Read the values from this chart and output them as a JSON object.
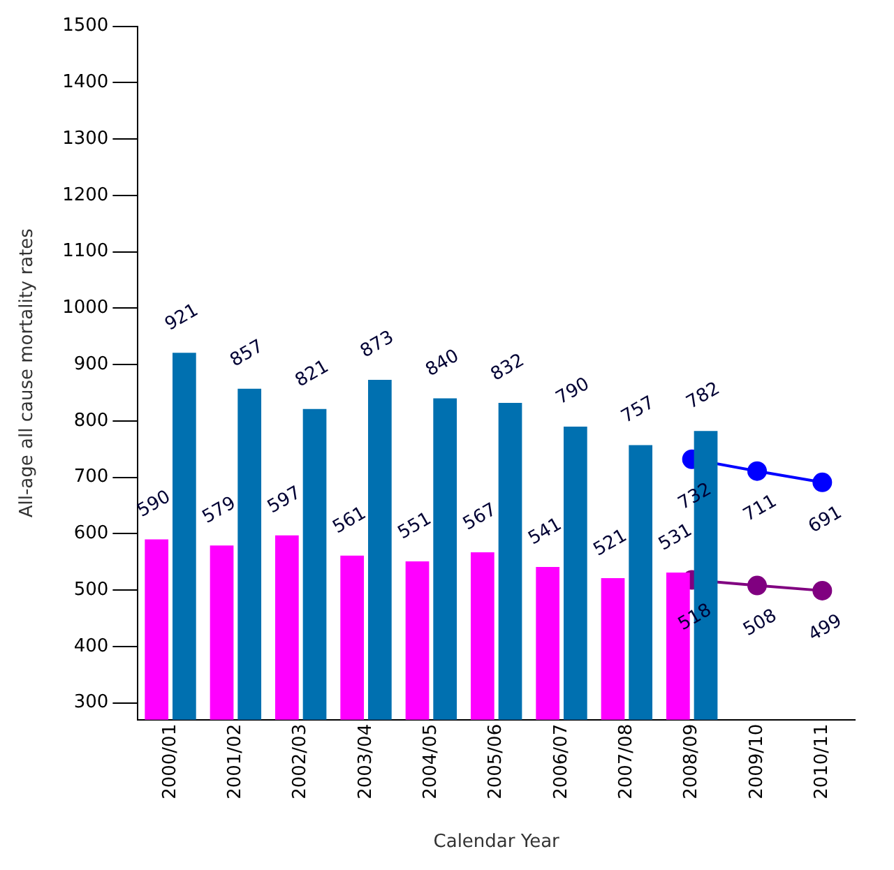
{
  "chart_data": {
    "type": "bar",
    "xlabel": "Calendar Year",
    "ylabel": "All-age all cause mortality rates",
    "categories": [
      "2000/01",
      "2001/02",
      "2002/03",
      "2003/04",
      "2004/05",
      "2005/06",
      "2006/07",
      "2007/08",
      "2008/09",
      "2009/10",
      "2010/11"
    ],
    "series": [
      {
        "color": "#ff00ff",
        "values": [
          590,
          579,
          597,
          561,
          551,
          567,
          541,
          521,
          531,
          null,
          null
        ]
      },
      {
        "color": "#0070b0",
        "values": [
          921,
          857,
          821,
          873,
          840,
          832,
          790,
          757,
          782,
          null,
          null
        ]
      },
      {
        "type": "line",
        "color": "#0000ff",
        "values": [
          null,
          null,
          null,
          null,
          null,
          null,
          null,
          null,
          732,
          711,
          691
        ]
      },
      {
        "type": "line",
        "color": "#800080",
        "values": [
          null,
          null,
          null,
          null,
          null,
          null,
          null,
          null,
          518,
          508,
          499
        ]
      }
    ],
    "ylim": [
      270,
      1500
    ],
    "yticks": [
      300,
      400,
      500,
      600,
      700,
      800,
      900,
      1000,
      1100,
      1200,
      1300,
      1400,
      1500
    ],
    "grid": false,
    "legend": false,
    "marker": "circle",
    "data_labels": true
  }
}
